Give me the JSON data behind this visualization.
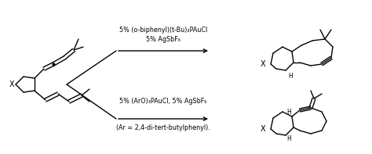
{
  "bg_color": "#ffffff",
  "fig_width": 4.74,
  "fig_height": 1.97,
  "dpi": 100,
  "top_reagent_line1": "5% (o-biphenyl)(t-Bu)₂PAuCl",
  "top_reagent_line2": "5% AgSbF₆",
  "bottom_reagent_line1": "5% (ArO)₃PAuCl, 5% AgSbF₆",
  "bottom_reagent_line2": "(Ar = 2,4-di-tert-butylphenyl).",
  "font_size_reagent": 5.8,
  "font_size_label": 7.0,
  "arrow_color": "#000000",
  "line_color": "#000000",
  "text_color": "#000000"
}
